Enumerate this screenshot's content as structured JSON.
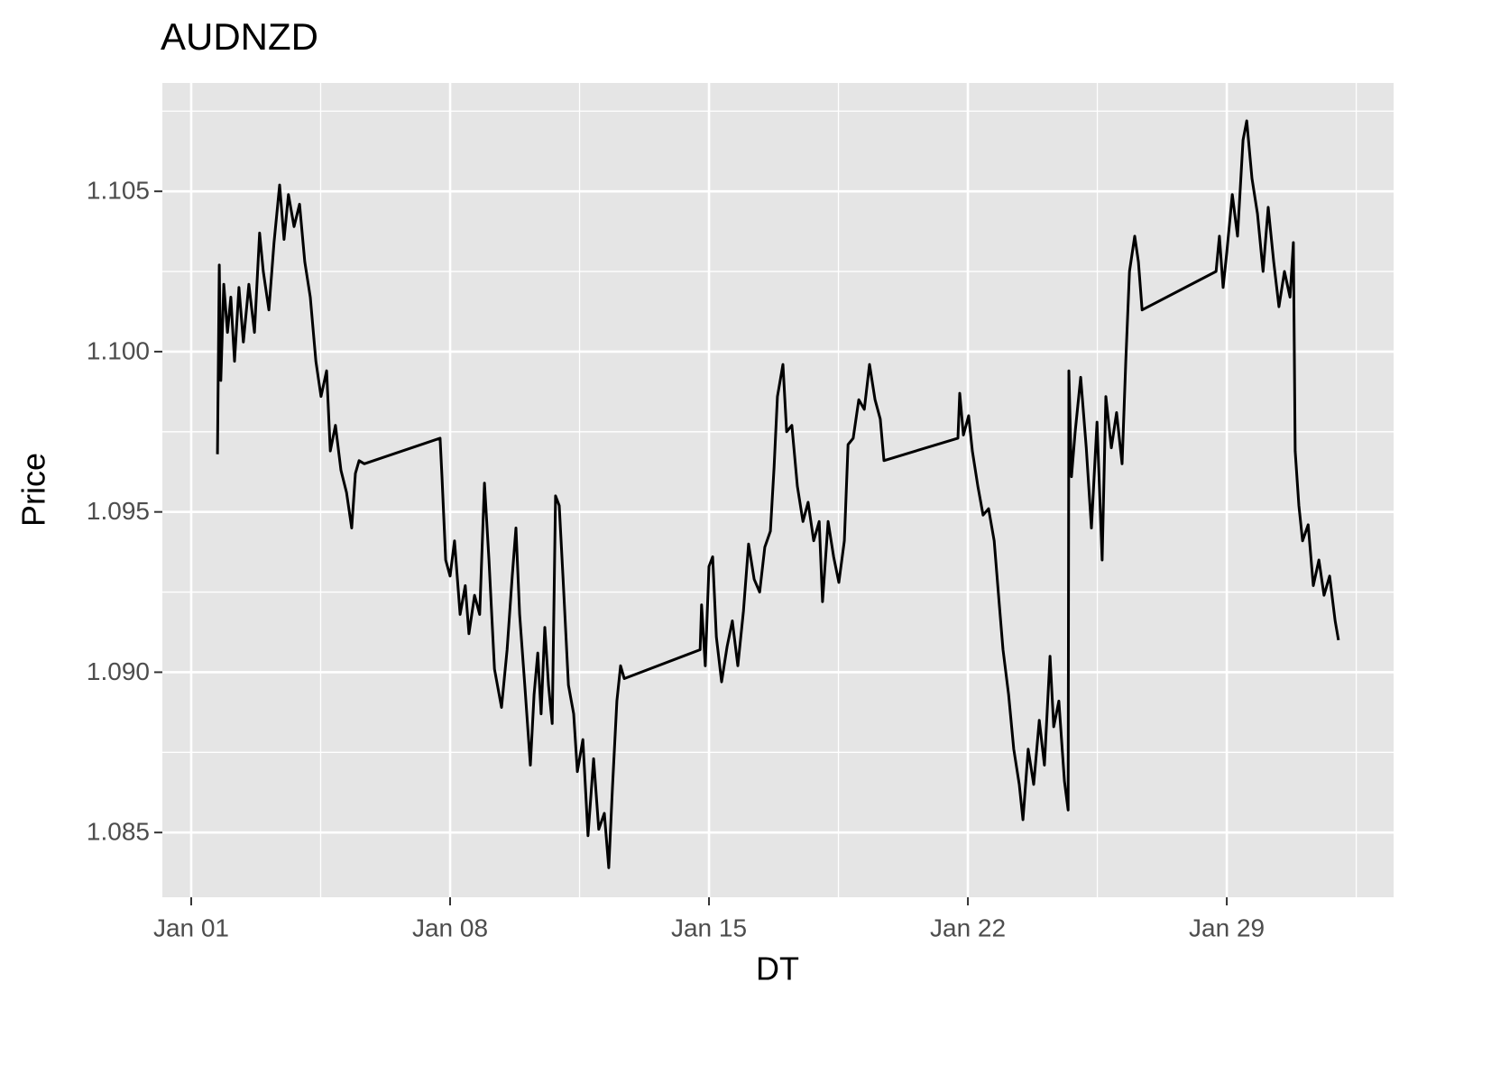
{
  "chart_data": {
    "type": "line",
    "title": "AUDNZD",
    "x_label": "DT",
    "y_label": "Price",
    "x": [
      1.71,
      1.76,
      1.8,
      1.88,
      1.98,
      2.07,
      2.17,
      2.29,
      2.41,
      2.56,
      2.71,
      2.85,
      2.95,
      3.1,
      3.24,
      3.39,
      3.51,
      3.63,
      3.78,
      3.93,
      4.07,
      4.22,
      4.37,
      4.51,
      4.66,
      4.76,
      4.9,
      5.05,
      5.2,
      5.34,
      5.44,
      5.54,
      5.68,
      7.73,
      7.78,
      7.88,
      8.0,
      8.12,
      8.27,
      8.41,
      8.51,
      8.66,
      8.8,
      8.93,
      9.05,
      9.2,
      9.39,
      9.54,
      9.68,
      9.78,
      9.88,
      10.02,
      10.17,
      10.27,
      10.37,
      10.46,
      10.56,
      10.66,
      10.76,
      10.85,
      10.95,
      11.05,
      11.2,
      11.34,
      11.44,
      11.59,
      11.73,
      11.88,
      12.02,
      12.17,
      12.29,
      12.39,
      12.51,
      12.61,
      12.71,
      14.76,
      14.8,
      14.9,
      15.0,
      15.1,
      15.2,
      15.34,
      15.49,
      15.63,
      15.78,
      15.93,
      16.07,
      16.22,
      16.37,
      16.51,
      16.66,
      16.76,
      16.85,
      17.0,
      17.1,
      17.24,
      17.39,
      17.54,
      17.68,
      17.83,
      17.98,
      18.07,
      18.22,
      18.37,
      18.51,
      18.66,
      18.76,
      18.9,
      19.05,
      19.2,
      19.34,
      19.49,
      19.63,
      19.73,
      21.73,
      21.78,
      21.88,
      22.02,
      22.12,
      22.27,
      22.41,
      22.56,
      22.71,
      22.85,
      22.95,
      23.1,
      23.24,
      23.39,
      23.49,
      23.63,
      23.78,
      23.93,
      24.07,
      24.22,
      24.32,
      24.46,
      24.61,
      24.71,
      24.73,
      24.8,
      24.9,
      25.05,
      25.2,
      25.34,
      25.49,
      25.63,
      25.73,
      25.88,
      26.02,
      26.17,
      26.27,
      26.37,
      26.51,
      26.61,
      26.71,
      28.71,
      28.8,
      28.9,
      29.0,
      29.15,
      29.29,
      29.44,
      29.54,
      29.68,
      29.83,
      29.98,
      30.12,
      30.27,
      30.41,
      30.56,
      30.71,
      30.8,
      30.85,
      30.95,
      31.05,
      31.2,
      31.34,
      31.49,
      31.63,
      31.78,
      31.93,
      32.02
    ],
    "series": [
      {
        "color": "#000000",
        "values": [
          1.0968,
          1.1027,
          1.0991,
          1.1021,
          1.1006,
          1.1017,
          1.0997,
          1.102,
          1.1003,
          1.1021,
          1.1006,
          1.1037,
          1.1025,
          1.1013,
          1.1034,
          1.1052,
          1.1035,
          1.1049,
          1.1039,
          1.1046,
          1.1028,
          1.1017,
          1.0997,
          1.0986,
          1.0994,
          1.0969,
          1.0977,
          1.0963,
          1.0956,
          1.0945,
          1.0962,
          1.0966,
          1.0965,
          1.0973,
          1.0961,
          1.0935,
          1.093,
          1.0941,
          1.0918,
          1.0927,
          1.0912,
          1.0924,
          1.0918,
          1.0959,
          1.0935,
          1.0901,
          1.0889,
          1.0907,
          1.093,
          1.0945,
          1.0918,
          1.0896,
          1.0871,
          1.0893,
          1.0906,
          1.0887,
          1.0914,
          1.0896,
          1.0884,
          1.0955,
          1.0952,
          1.093,
          1.0896,
          1.0887,
          1.0869,
          1.0879,
          1.0849,
          1.0873,
          1.0851,
          1.0856,
          1.0839,
          1.0864,
          1.0891,
          1.0902,
          1.0898,
          1.0907,
          1.0921,
          1.0902,
          1.0933,
          1.0936,
          1.0911,
          1.0897,
          1.0908,
          1.0916,
          1.0902,
          1.0919,
          1.094,
          1.0929,
          1.0925,
          1.0939,
          1.0944,
          1.0964,
          1.0986,
          1.0996,
          1.0975,
          1.0977,
          1.0958,
          1.0947,
          1.0953,
          1.0941,
          1.0947,
          1.0922,
          1.0947,
          1.0936,
          1.0928,
          1.0941,
          1.0971,
          1.0973,
          1.0985,
          1.0982,
          1.0996,
          1.0985,
          1.0979,
          1.0966,
          1.0973,
          1.0987,
          1.0974,
          1.098,
          1.0969,
          1.0958,
          1.0949,
          1.0951,
          1.0941,
          1.0921,
          1.0907,
          1.0893,
          1.0876,
          1.0865,
          1.0854,
          1.0876,
          1.0865,
          1.0885,
          1.0871,
          1.0905,
          1.0883,
          1.0891,
          1.0866,
          1.0857,
          1.0994,
          1.0961,
          1.0975,
          1.0992,
          1.097,
          1.0945,
          1.0978,
          1.0935,
          1.0986,
          1.097,
          1.0981,
          1.0965,
          1.0997,
          1.1025,
          1.1036,
          1.1028,
          1.1013,
          1.1025,
          1.1036,
          1.102,
          1.1031,
          1.1049,
          1.1036,
          1.1066,
          1.1072,
          1.1054,
          1.1043,
          1.1025,
          1.1045,
          1.1028,
          1.1014,
          1.1025,
          1.1017,
          1.1034,
          1.0969,
          1.0952,
          1.0941,
          1.0946,
          1.0927,
          1.0935,
          1.0924,
          1.093,
          1.0916,
          1.091
        ]
      }
    ],
    "xlim": [
      0.22,
      33.51
    ],
    "xticks": [
      {
        "value": 1,
        "label": "Jan 01"
      },
      {
        "value": 8,
        "label": "Jan 08"
      },
      {
        "value": 15,
        "label": "Jan 15"
      },
      {
        "value": 22,
        "label": "Jan 22"
      },
      {
        "value": 29,
        "label": "Jan 29"
      }
    ],
    "ylim": [
      1.08298,
      1.10838
    ],
    "yticks": [
      {
        "value": 1.085,
        "label": "1.085"
      },
      {
        "value": 1.09,
        "label": "1.090"
      },
      {
        "value": 1.095,
        "label": "1.095"
      },
      {
        "value": 1.1,
        "label": "1.100"
      },
      {
        "value": 1.105,
        "label": "1.105"
      }
    ],
    "grid": true,
    "minor_grid": true,
    "background": "#e5e5e5"
  }
}
